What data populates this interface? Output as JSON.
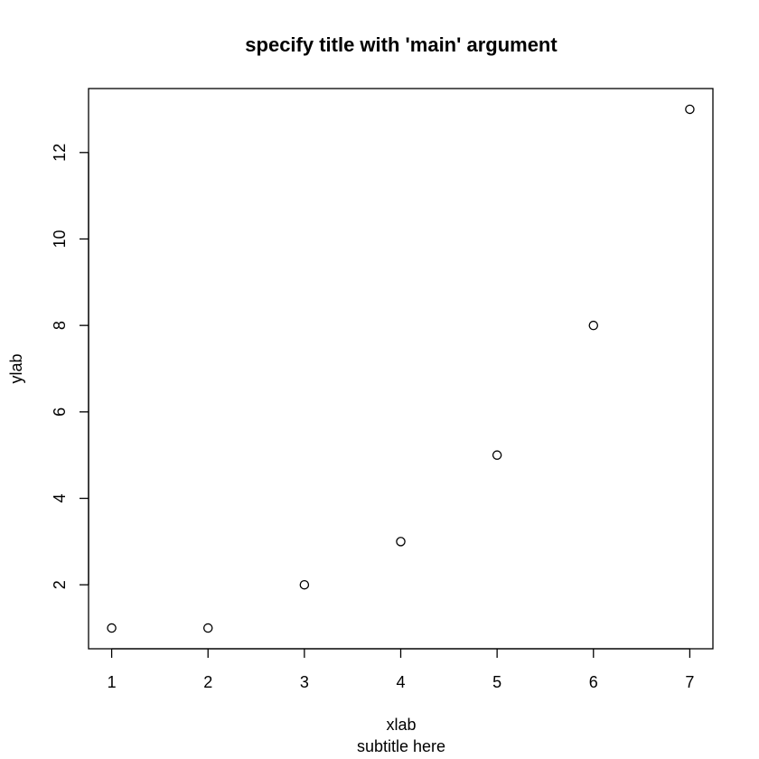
{
  "chart_data": {
    "type": "scatter",
    "title": "specify title with 'main' argument",
    "subtitle": "subtitle here",
    "xlabel": "xlab",
    "ylabel": "ylab",
    "x": [
      1,
      2,
      3,
      4,
      5,
      6,
      7
    ],
    "y": [
      1,
      1,
      2,
      3,
      5,
      8,
      13
    ],
    "xlim": [
      0.76,
      7.24
    ],
    "ylim": [
      0.52,
      13.48
    ],
    "x_ticks": [
      1,
      2,
      3,
      4,
      5,
      6,
      7
    ],
    "x_tick_labels": [
      "1",
      "2",
      "3",
      "4",
      "5",
      "6",
      "7"
    ],
    "y_ticks": [
      2,
      4,
      6,
      8,
      10,
      12
    ],
    "y_tick_labels": [
      "2",
      "4",
      "6",
      "8",
      "10",
      "12"
    ],
    "marker": "open-circle",
    "grid": false,
    "legend": "none"
  },
  "colors": {
    "background": "#ffffff",
    "foreground": "#000000"
  }
}
